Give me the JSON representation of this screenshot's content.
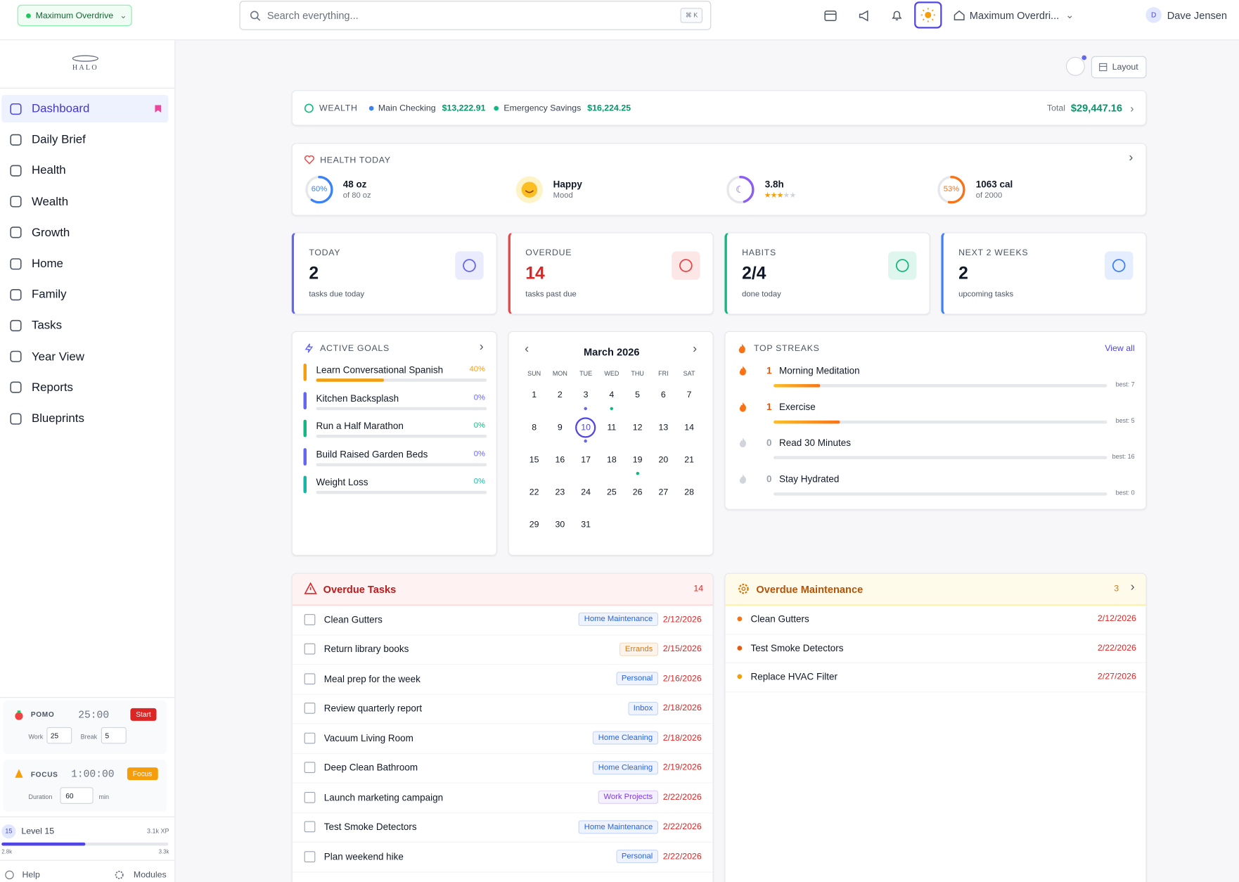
{
  "topbar": {
    "workspace_pill": "Maximum Overdrive",
    "search_placeholder": "Search everything...",
    "search_shortcut": "⌘ K",
    "workspace": "Maximum Overdri...",
    "avatar": "D",
    "user": "Dave Jensen"
  },
  "sidebar": {
    "logo": "HALO",
    "nav": [
      "Dashboard",
      "Daily Brief",
      "Health",
      "Wealth",
      "Growth",
      "Home",
      "Family",
      "Tasks",
      "Year View",
      "Reports",
      "Blueprints"
    ],
    "pomo": {
      "label": "POMO",
      "time": "25:00",
      "button": "Start",
      "work_label": "Work",
      "work": "25",
      "break_label": "Break",
      "break": "5"
    },
    "focus": {
      "label": "FOCUS",
      "time": "1:00:00",
      "button": "Focus",
      "duration_label": "Duration",
      "duration": "60",
      "unit": "min"
    },
    "level": {
      "badge": "15",
      "label": "Level 15",
      "xp": "3.1k XP",
      "min": "2.8k",
      "max": "3.3k"
    },
    "footer": {
      "help": "Help",
      "modules": "Modules"
    }
  },
  "main": {
    "layout_button": "Layout",
    "wealth": {
      "title": "WEALTH",
      "accounts": [
        {
          "name": "Main Checking",
          "amount": "$13,222.91",
          "color": "#3b82f6"
        },
        {
          "name": "Emergency Savings",
          "amount": "$16,224.25",
          "color": "#10b981"
        }
      ],
      "total_label": "Total",
      "total": "$29,447.16"
    },
    "health": {
      "title": "HEALTH TODAY",
      "water": {
        "ring": "60%",
        "value": "48 oz",
        "sub": "of 80 oz",
        "color": "#3b82f6"
      },
      "mood": {
        "value": "Happy",
        "sub": "Mood"
      },
      "sleep": {
        "value": "3.8h",
        "rating": 3,
        "color": "#8b5cf6"
      },
      "calories": {
        "ring": "53%",
        "value": "1063 cal",
        "sub": "of 2000",
        "color": "#f97316"
      }
    },
    "stats": [
      {
        "label": "TODAY",
        "value": "2",
        "sub": "tasks due today",
        "color": "#6366f1"
      },
      {
        "label": "OVERDUE",
        "value": "14",
        "sub": "tasks past due",
        "color": "#ef4444"
      },
      {
        "label": "HABITS",
        "value": "2/4",
        "sub": "done today",
        "color": "#10b981"
      },
      {
        "label": "NEXT 2 WEEKS",
        "value": "2",
        "sub": "upcoming tasks",
        "color": "#3b82f6"
      }
    ],
    "goals": {
      "title": "ACTIVE GOALS",
      "items": [
        {
          "name": "Learn Conversational Spanish",
          "percent": "40%",
          "color": "#f59e0b"
        },
        {
          "name": "Kitchen Backsplash",
          "percent": "0%",
          "color": "#6366f1"
        },
        {
          "name": "Run a Half Marathon",
          "percent": "0%",
          "color": "#10b981"
        },
        {
          "name": "Build Raised Garden Beds",
          "percent": "0%",
          "color": "#6366f1"
        },
        {
          "name": "Weight Loss",
          "percent": "0%",
          "color": "#14b8a6"
        }
      ]
    },
    "calendar": {
      "month": "March 2026",
      "weekdays": [
        "SUN",
        "MON",
        "TUE",
        "WED",
        "THU",
        "FRI",
        "SAT"
      ],
      "weeks": [
        [
          1,
          2,
          3,
          4,
          5,
          6,
          7
        ],
        [
          8,
          9,
          10,
          11,
          12,
          13,
          14
        ],
        [
          15,
          16,
          17,
          18,
          19,
          20,
          21
        ],
        [
          22,
          23,
          24,
          25,
          26,
          27,
          28
        ],
        [
          29,
          30,
          31,
          null,
          null,
          null,
          null
        ]
      ],
      "today": 10,
      "events": [
        {
          "day": 3,
          "color": "#6366f1"
        },
        {
          "day": 4,
          "color": "#10b981"
        },
        {
          "day": 10,
          "color": "#6366f1"
        },
        {
          "day": 19,
          "color": "#10b981"
        }
      ]
    },
    "streaks": {
      "title": "TOP STREAKS",
      "view_all": "View all",
      "items": [
        {
          "count": "1",
          "name": "Morning Meditation",
          "best": "best: 7"
        },
        {
          "count": "1",
          "name": "Exercise",
          "best": "best: 5"
        },
        {
          "count": "0",
          "name": "Read 30 Minutes",
          "best": "best: 16"
        },
        {
          "count": "0",
          "name": "Stay Hydrated",
          "best": "best: 0"
        }
      ]
    },
    "overdue_tasks": {
      "title": "Overdue Tasks",
      "count": "14",
      "rows": [
        {
          "name": "Clean Gutters",
          "tag": "Home Maintenance",
          "date": "2/12/2026",
          "color": "#2563eb"
        },
        {
          "name": "Return library books",
          "tag": "Errands",
          "date": "2/15/2026",
          "color": "#d97706"
        },
        {
          "name": "Meal prep for the week",
          "tag": "Personal",
          "date": "2/16/2026",
          "color": "#2563eb"
        },
        {
          "name": "Review quarterly report",
          "tag": "Inbox",
          "date": "2/18/2026",
          "color": "#2563eb"
        },
        {
          "name": "Vacuum Living Room",
          "tag": "Home Cleaning",
          "date": "2/18/2026",
          "color": "#2563eb"
        },
        {
          "name": "Deep Clean Bathroom",
          "tag": "Home Cleaning",
          "date": "2/19/2026",
          "color": "#2563eb"
        },
        {
          "name": "Launch marketing campaign",
          "tag": "Work Projects",
          "date": "2/22/2026",
          "color": "#7c3aed"
        },
        {
          "name": "Test Smoke Detectors",
          "tag": "Home Maintenance",
          "date": "2/22/2026",
          "color": "#2563eb"
        },
        {
          "name": "Plan weekend hike",
          "tag": "Personal",
          "date": "2/22/2026",
          "color": "#2563eb"
        }
      ]
    },
    "maintenance": {
      "title": "Overdue Maintenance",
      "count": "3",
      "rows": [
        {
          "name": "Clean Gutters",
          "date": "2/12/2026",
          "color": "#f97316"
        },
        {
          "name": "Test Smoke Detectors",
          "date": "2/22/2026",
          "color": "#ea580c"
        },
        {
          "name": "Replace HVAC Filter",
          "date": "2/27/2026",
          "color": "#f59e0b"
        }
      ]
    }
  }
}
